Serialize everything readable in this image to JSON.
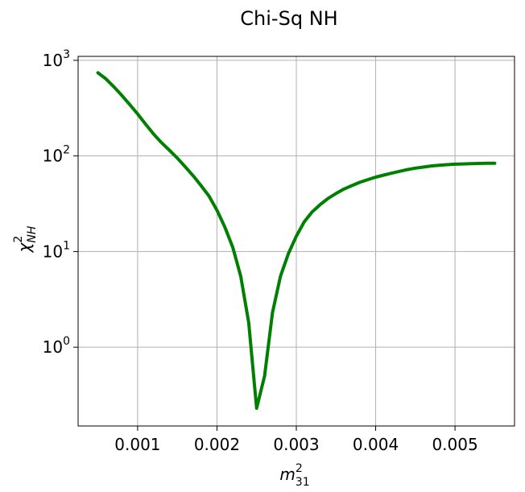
{
  "chart_data": {
    "type": "line",
    "title": "Chi-Sq NH",
    "xlabel": "m",
    "xlabel_superscript": "2",
    "xlabel_subscript": "31",
    "ylabel": "χ",
    "ylabel_superscript": "2",
    "ylabel_subscript": "NH",
    "xlim": [
      0.00025,
      0.00575
    ],
    "ylim": [
      0.15,
      1100
    ],
    "yscale": "log",
    "grid": true,
    "x_ticks": [
      {
        "value": 0.001,
        "label": "0.001"
      },
      {
        "value": 0.002,
        "label": "0.002"
      },
      {
        "value": 0.003,
        "label": "0.003"
      },
      {
        "value": 0.004,
        "label": "0.004"
      },
      {
        "value": 0.005,
        "label": "0.005"
      }
    ],
    "y_ticks": [
      {
        "value": 1,
        "base": "10",
        "exp": "0"
      },
      {
        "value": 10,
        "base": "10",
        "exp": "1"
      },
      {
        "value": 100,
        "base": "10",
        "exp": "2"
      },
      {
        "value": 1000,
        "base": "10",
        "exp": "3"
      }
    ],
    "series": [
      {
        "color": "#008000",
        "x": [
          0.0005,
          0.0006,
          0.0007,
          0.0008,
          0.0009,
          0.001,
          0.0011,
          0.0012,
          0.0013,
          0.0014,
          0.0015,
          0.0016,
          0.0017,
          0.0018,
          0.0019,
          0.002,
          0.0021,
          0.0022,
          0.0023,
          0.0024,
          0.0025,
          0.0026,
          0.0027,
          0.0028,
          0.0029,
          0.003,
          0.0031,
          0.0032,
          0.0033,
          0.0034,
          0.0035,
          0.0036,
          0.0037,
          0.0038,
          0.0039,
          0.004,
          0.0041,
          0.0042,
          0.0043,
          0.0044,
          0.0045,
          0.0046,
          0.0047,
          0.0048,
          0.0049,
          0.005,
          0.0051,
          0.0052,
          0.0053,
          0.0054,
          0.0055
        ],
        "y": [
          740,
          640,
          530,
          430,
          345,
          275,
          215,
          170,
          138,
          115,
          95,
          77,
          62,
          49,
          38,
          27,
          18,
          11,
          5.5,
          1.8,
          0.23,
          0.5,
          2.3,
          5.5,
          9.5,
          14.5,
          20.5,
          26,
          31,
          36,
          40.5,
          45,
          49,
          53,
          56.5,
          60,
          63,
          66,
          69,
          72,
          74.5,
          76.5,
          78.5,
          80,
          81,
          82,
          82.5,
          83,
          83.5,
          84,
          84
        ]
      }
    ]
  }
}
